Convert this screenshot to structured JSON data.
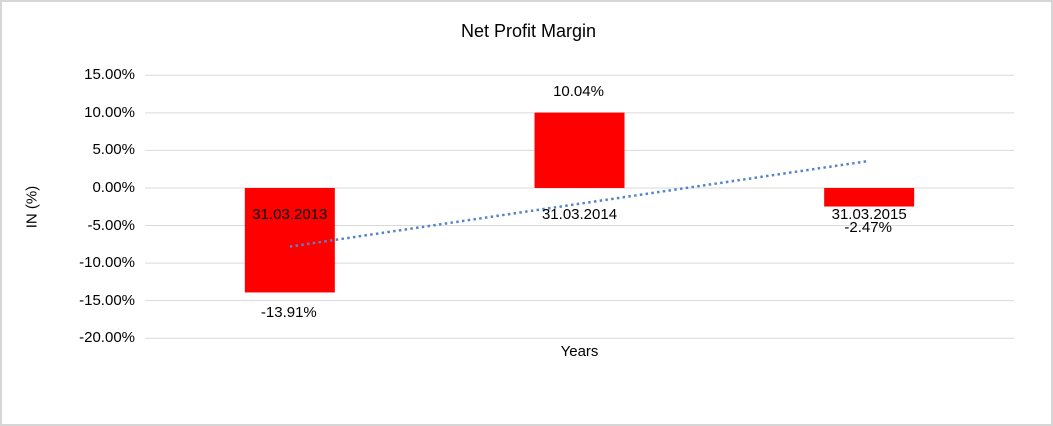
{
  "chart_data": {
    "type": "bar",
    "title": "Net Profit Margin",
    "xlabel": "Years",
    "ylabel": "IN (%)",
    "categories": [
      "31.03.2013",
      "31.03.2014",
      "31.03.2015"
    ],
    "values": [
      -13.91,
      10.04,
      -2.47
    ],
    "data_labels": [
      "-13.91%",
      "10.04%",
      "-2.47%"
    ],
    "y_ticks": [
      15,
      10,
      5,
      0,
      -5,
      -10,
      -15,
      -20
    ],
    "y_tick_labels": [
      "15.00%",
      "10.00%",
      "5.00%",
      "0.00%",
      "-5.00%",
      "-10.00%",
      "-15.00%",
      "-20.00%"
    ],
    "ylim": [
      -20,
      15
    ],
    "grid": true,
    "legend": false,
    "colors": {
      "bar": "#ff0000",
      "gridline": "#d9d9d9",
      "trendline": "#5585c5",
      "text": "#000000",
      "frame_border": "#d6d6d6"
    },
    "trendline": {
      "type": "linear",
      "style": "dotted",
      "start_pct": -7.8,
      "end_pct": 3.6
    }
  }
}
